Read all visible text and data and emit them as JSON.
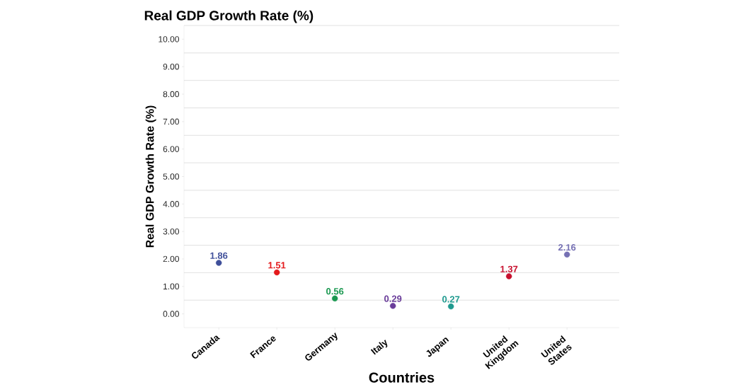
{
  "chart_data": {
    "type": "scatter",
    "title": "Real GDP Growth Rate (%)",
    "xlabel": "Countries",
    "ylabel": "Real GDP Growth Rate (%)",
    "categories": [
      "Canada",
      "France",
      "Germany",
      "Italy",
      "Japan",
      "United Kingdom",
      "United States"
    ],
    "values": [
      1.86,
      1.51,
      0.56,
      0.29,
      0.27,
      1.37,
      2.16
    ],
    "colors": [
      "#3f4f9a",
      "#e41a1c",
      "#1a9850",
      "#6a3d9a",
      "#1f9a8f",
      "#c8102e",
      "#7570b3"
    ],
    "data_labels": true,
    "marker": "circle",
    "grid": "y",
    "ylim": [
      -0.5,
      10.5
    ],
    "yticks": [
      {
        "value": 0,
        "label": "0.00"
      },
      {
        "value": 0.5,
        "label": null
      },
      {
        "value": 1,
        "label": "1.00"
      },
      {
        "value": 1.5,
        "label": null
      },
      {
        "value": 2,
        "label": "2.00"
      },
      {
        "value": 2.5,
        "label": null
      },
      {
        "value": 3,
        "label": "3.00"
      },
      {
        "value": 3.5,
        "label": null
      },
      {
        "value": 4,
        "label": "4.00"
      },
      {
        "value": 4.5,
        "label": null
      },
      {
        "value": 5,
        "label": "5.00"
      },
      {
        "value": 5.5,
        "label": null
      },
      {
        "value": 6,
        "label": "6.00"
      },
      {
        "value": 6.5,
        "label": null
      },
      {
        "value": 7,
        "label": "7.00"
      },
      {
        "value": 7.5,
        "label": null
      },
      {
        "value": 8,
        "label": "8.00"
      },
      {
        "value": 8.5,
        "label": null
      },
      {
        "value": 9,
        "label": "9.00"
      },
      {
        "value": 9.5,
        "label": null
      },
      {
        "value": 10,
        "label": "10.00"
      },
      {
        "value": 10.5,
        "label": null
      }
    ]
  }
}
